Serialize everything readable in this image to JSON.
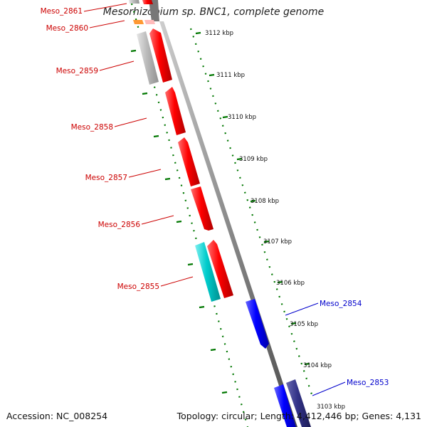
{
  "title": "Mesorhizobium sp. BNC1, complete genome",
  "footer": {
    "accession": "Accession: NC_008254",
    "summary": "Topology: circular; Length: 4,412,446 bp; Genes: 4,131"
  },
  "colors": {
    "forward_gene": "#ff0000",
    "reverse_gene": "#0000ff",
    "cyan_gene": "#00cccc",
    "gray_gene": "#bbbbbb",
    "orange_gene": "#ff9933",
    "pink_gene": "#ffbbbb",
    "navy_gene": "#333388",
    "tick": "#007700",
    "backbone": "#888888"
  },
  "kbp_ticks": [
    "3112 kbp",
    "3111 kbp",
    "3110 kbp",
    "3109 kbp",
    "3108 kbp",
    "3107 kbp",
    "3106 kbp",
    "3105 kbp",
    "3104 kbp",
    "3103 kbp"
  ],
  "gene_labels": [
    {
      "text": "Meso_2861",
      "color": "#cc0000"
    },
    {
      "text": "Meso_2860",
      "color": "#cc0000"
    },
    {
      "text": "Meso_2859",
      "color": "#cc0000"
    },
    {
      "text": "Meso_2858",
      "color": "#cc0000"
    },
    {
      "text": "Meso_2857",
      "color": "#cc0000"
    },
    {
      "text": "Meso_2856",
      "color": "#cc0000"
    },
    {
      "text": "Meso_2855",
      "color": "#cc0000"
    },
    {
      "text": "Meso_2854",
      "color": "#0000cc"
    },
    {
      "text": "Meso_2853",
      "color": "#0000cc"
    }
  ]
}
